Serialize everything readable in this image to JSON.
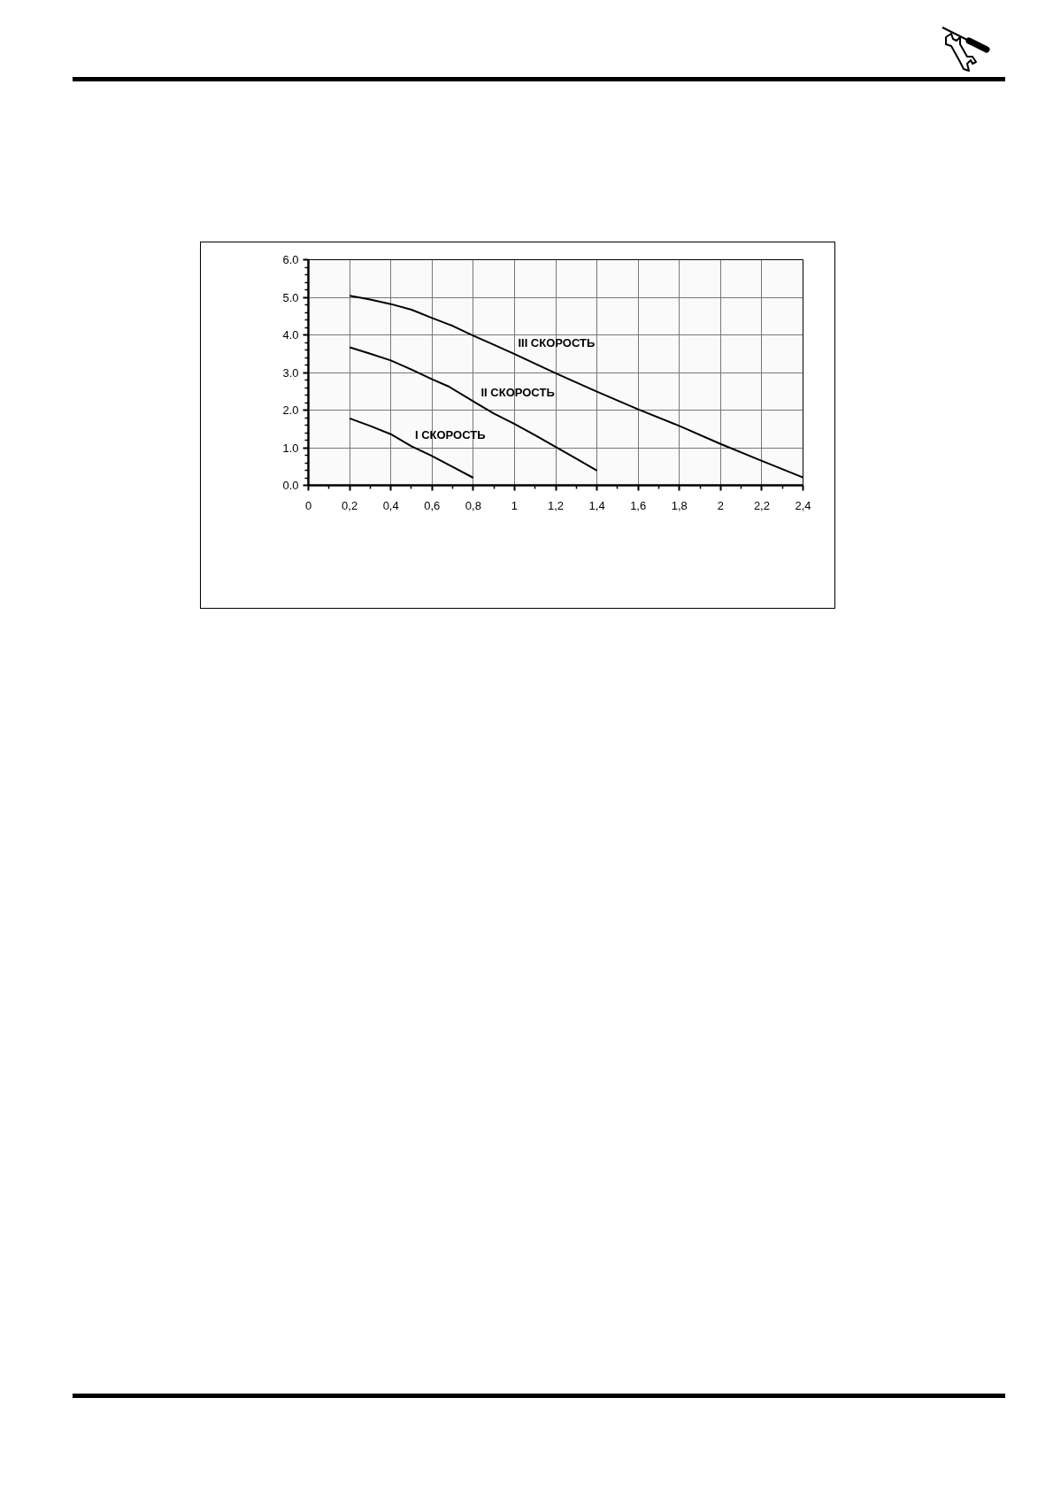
{
  "chart_data": {
    "type": "line",
    "xlim": [
      0,
      2.4
    ],
    "ylim": [
      0,
      6
    ],
    "xticks": [
      0,
      {
        "value": 0.2,
        "label": "0,2"
      },
      {
        "value": 0.4,
        "label": "0,4"
      },
      {
        "value": 0.6,
        "label": "0,6"
      },
      {
        "value": 0.8,
        "label": "0,8"
      },
      1,
      {
        "value": 1.2,
        "label": "1,2"
      },
      {
        "value": 1.4,
        "label": "1,4"
      },
      {
        "value": 1.6,
        "label": "1,6"
      },
      {
        "value": 1.8,
        "label": "1,8"
      },
      2,
      {
        "value": 2.2,
        "label": "2,2"
      },
      {
        "value": 2.4,
        "label": "2,4"
      }
    ],
    "yticks": [
      {
        "value": 0,
        "label": "0.0"
      },
      {
        "value": 1,
        "label": "1.0"
      },
      {
        "value": 2,
        "label": "2.0"
      },
      {
        "value": 3,
        "label": "3.0"
      },
      {
        "value": 4,
        "label": "4.0"
      },
      {
        "value": 5,
        "label": "5.0"
      },
      {
        "value": 6,
        "label": "6.0"
      }
    ],
    "grid": true,
    "series": [
      {
        "name": "I СКОРОСТЬ",
        "color": "#000000",
        "x": [
          0.2,
          0.3,
          0.4,
          0.5,
          0.6,
          0.7,
          0.8
        ],
        "values": [
          1.78,
          1.58,
          1.36,
          1.04,
          0.78,
          0.49,
          0.2
        ]
      },
      {
        "name": "II СКОРОСТЬ",
        "color": "#000000",
        "x": [
          0.2,
          0.3,
          0.4,
          0.5,
          0.6,
          0.68,
          0.82,
          0.9,
          1.0,
          1.1,
          1.2,
          1.3,
          1.4
        ],
        "values": [
          3.67,
          3.5,
          3.32,
          3.08,
          2.82,
          2.63,
          2.17,
          1.91,
          1.63,
          1.33,
          1.02,
          0.71,
          0.39
        ]
      },
      {
        "name": "III СКОРОСТЬ",
        "color": "#000000",
        "x": [
          0.2,
          0.3,
          0.4,
          0.5,
          0.6,
          0.7,
          0.8,
          0.9,
          1.0,
          1.2,
          1.4,
          1.6,
          1.8,
          2.0,
          2.2,
          2.4
        ],
        "values": [
          5.04,
          4.94,
          4.82,
          4.67,
          4.45,
          4.24,
          3.98,
          3.74,
          3.49,
          2.98,
          2.49,
          2.02,
          1.58,
          1.1,
          0.65,
          0.21
        ]
      }
    ]
  }
}
